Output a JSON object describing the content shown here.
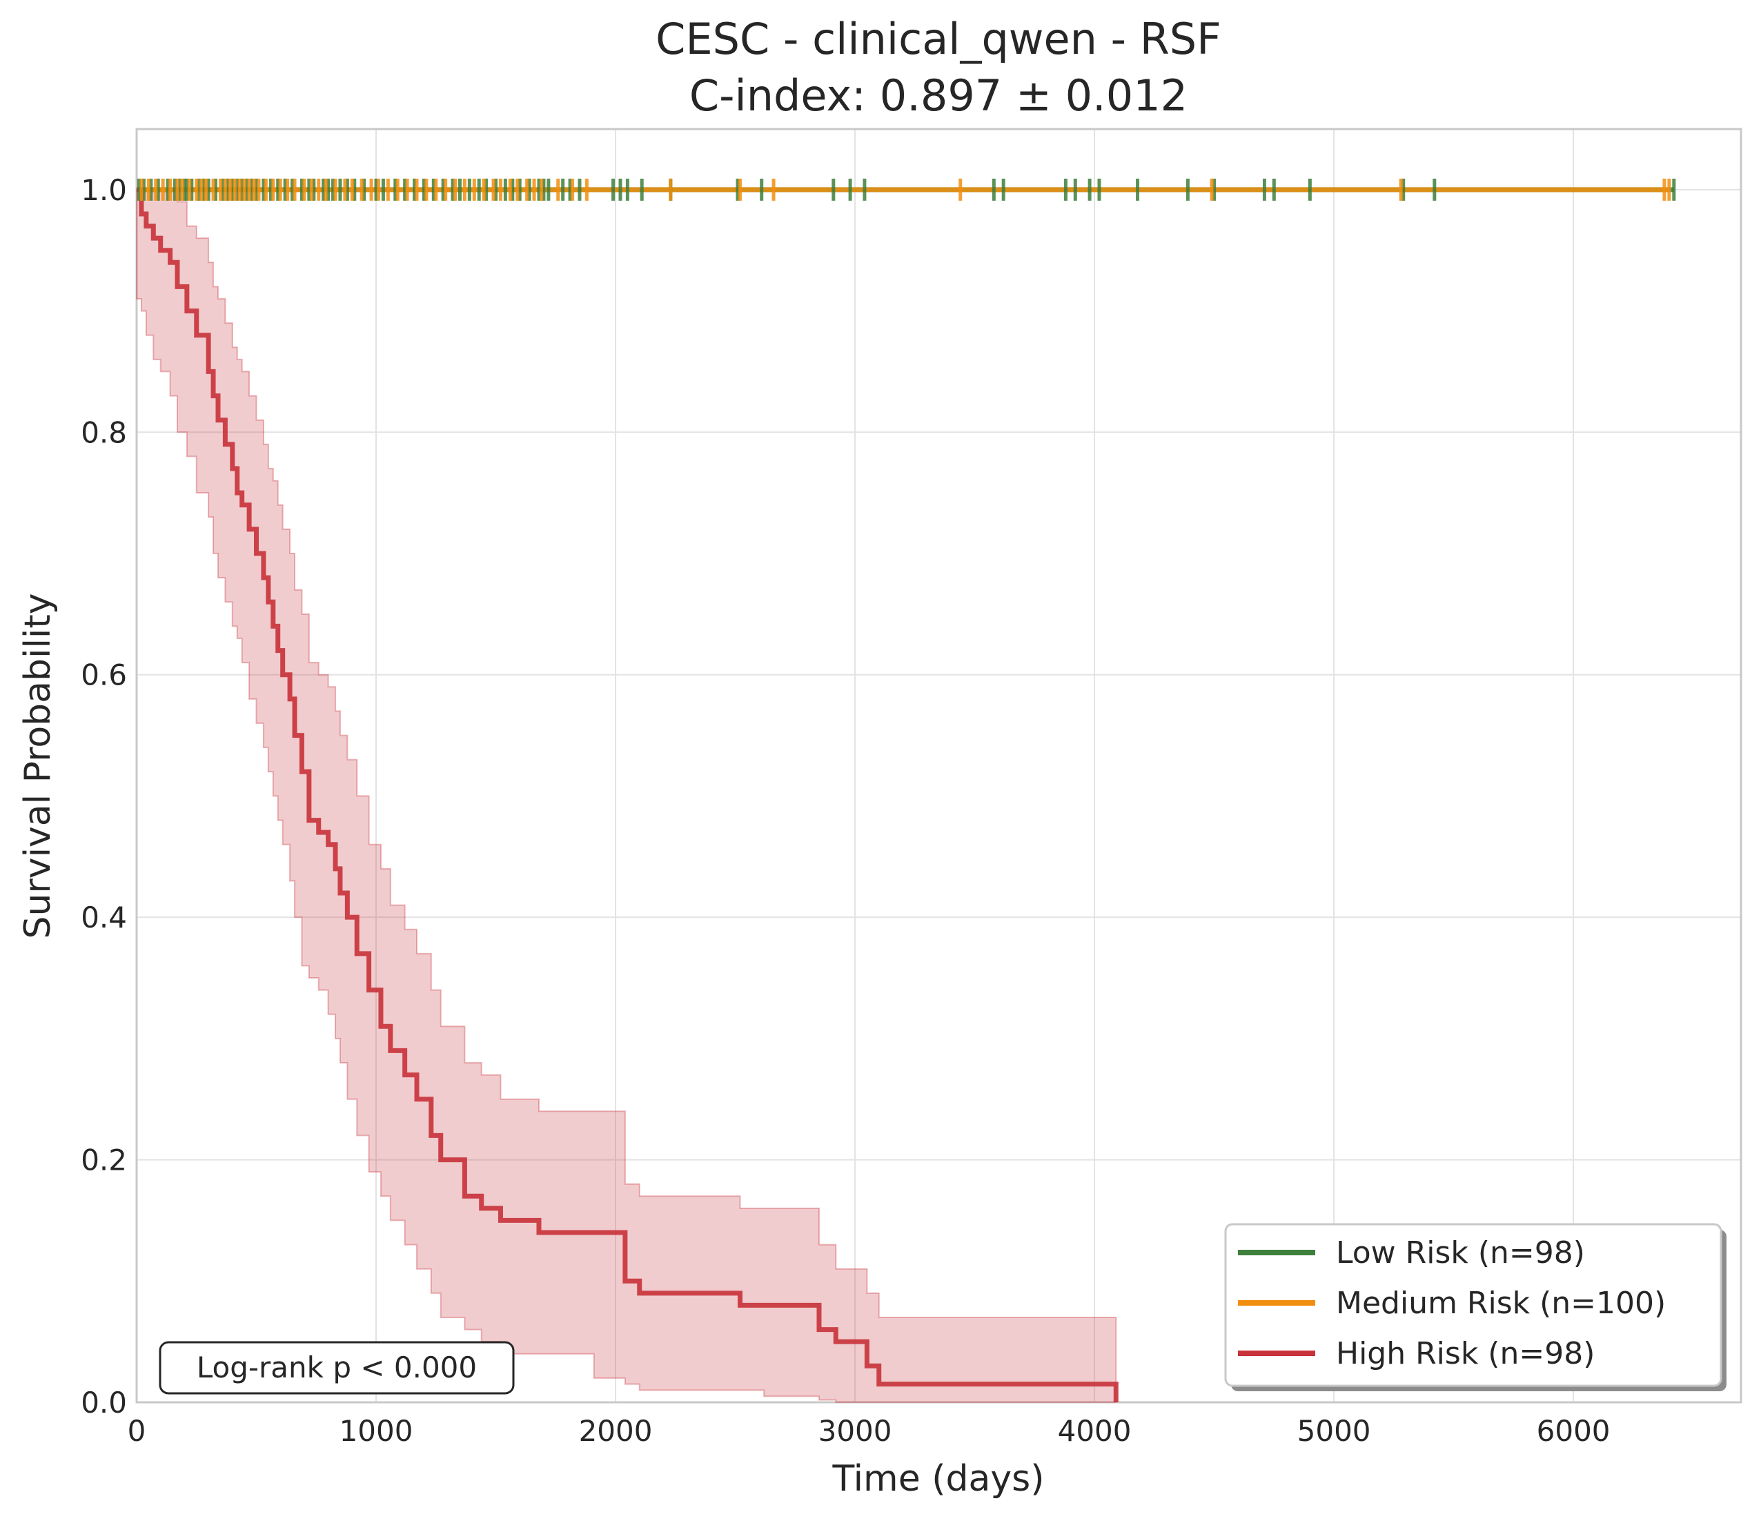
{
  "chart_data": {
    "type": "line",
    "title_line1": "CESC - clinical_qwen - RSF",
    "title_line2": "C-index: 0.897 ± 0.012",
    "xlabel": "Time (days)",
    "ylabel": "Survival Probability",
    "xlim": [
      0,
      6700
    ],
    "ylim": [
      0,
      1.05
    ],
    "x_ticks": [
      0,
      1000,
      2000,
      3000,
      4000,
      5000,
      6000
    ],
    "x_tick_labels": [
      "0",
      "1000",
      "2000",
      "3000",
      "4000",
      "5000",
      "6000"
    ],
    "y_ticks": [
      0,
      0.2,
      0.4,
      0.6,
      0.8,
      1.0
    ],
    "y_tick_labels": [
      "0.0",
      "0.2",
      "0.4",
      "0.6",
      "0.8",
      "1.0"
    ],
    "grid": true,
    "legend_position": "bottom-right",
    "annotation": "Log-rank p < 0.000",
    "colors": {
      "low": "#3e7f3b",
      "medium": "#f28e0e",
      "high": "#c8323a",
      "grid": "#e3e3e3",
      "axes": "#c8c8c8",
      "text": "#262626"
    },
    "series": [
      {
        "name": "Low Risk (n=98)",
        "key": "low",
        "x": [
          0,
          6420
        ],
        "y": [
          1.0,
          1.0
        ],
        "censor_x": [
          10,
          30,
          60,
          90,
          130,
          160,
          180,
          200,
          210,
          230,
          260,
          280,
          300,
          330,
          360,
          380,
          400,
          420,
          440,
          460,
          480,
          500,
          530,
          560,
          590,
          620,
          650,
          690,
          720,
          740,
          780,
          800,
          820,
          850,
          880,
          910,
          950,
          1000,
          1030,
          1080,
          1120,
          1160,
          1200,
          1240,
          1280,
          1320,
          1350,
          1390,
          1430,
          1460,
          1500,
          1540,
          1570,
          1600,
          1640,
          1680,
          1700,
          1720,
          1780,
          1810,
          1850,
          1990,
          2020,
          2050,
          2110,
          2230,
          2510,
          2610,
          2910,
          2980,
          3040,
          3580,
          3620,
          3880,
          3920,
          3980,
          4020,
          4180,
          4390,
          4500,
          4710,
          4750,
          4900,
          5290,
          5420,
          6420
        ]
      },
      {
        "name": "Medium Risk (n=100)",
        "key": "medium",
        "x": [
          0,
          6400
        ],
        "y": [
          1.0,
          1.0
        ],
        "censor_x": [
          20,
          50,
          80,
          110,
          140,
          170,
          190,
          220,
          250,
          270,
          290,
          320,
          350,
          370,
          390,
          410,
          430,
          450,
          470,
          490,
          510,
          540,
          570,
          600,
          630,
          660,
          700,
          730,
          760,
          790,
          830,
          870,
          900,
          940,
          980,
          1010,
          1050,
          1090,
          1130,
          1170,
          1210,
          1250,
          1290,
          1330,
          1370,
          1410,
          1450,
          1490,
          1520,
          1560,
          1590,
          1630,
          1660,
          1690,
          1760,
          1820,
          1880,
          2230,
          2520,
          2660,
          3440,
          4490,
          5280,
          6380,
          6400
        ]
      },
      {
        "name": "High Risk (n=98)",
        "key": "high",
        "x": [
          0,
          20,
          40,
          70,
          100,
          140,
          170,
          210,
          250,
          300,
          320,
          340,
          370,
          400,
          420,
          440,
          470,
          500,
          530,
          550,
          570,
          590,
          610,
          640,
          660,
          690,
          720,
          760,
          800,
          830,
          850,
          880,
          920,
          970,
          1020,
          1060,
          1120,
          1170,
          1230,
          1270,
          1370,
          1440,
          1520,
          1680,
          1910,
          2040,
          2100,
          2520,
          2620,
          2850,
          2920,
          3050,
          3100,
          3400,
          4080,
          4090
        ],
        "y": [
          1.0,
          0.98,
          0.97,
          0.96,
          0.95,
          0.94,
          0.92,
          0.9,
          0.88,
          0.85,
          0.83,
          0.81,
          0.79,
          0.77,
          0.75,
          0.74,
          0.72,
          0.7,
          0.68,
          0.66,
          0.64,
          0.62,
          0.6,
          0.58,
          0.55,
          0.52,
          0.48,
          0.47,
          0.46,
          0.44,
          0.42,
          0.4,
          0.37,
          0.34,
          0.31,
          0.29,
          0.27,
          0.25,
          0.22,
          0.2,
          0.17,
          0.16,
          0.15,
          0.14,
          0.14,
          0.1,
          0.09,
          0.08,
          0.08,
          0.06,
          0.05,
          0.03,
          0.015,
          0.015,
          0.015,
          0.0
        ],
        "ci_lower": [
          0.93,
          0.91,
          0.9,
          0.88,
          0.86,
          0.85,
          0.83,
          0.8,
          0.78,
          0.75,
          0.73,
          0.7,
          0.68,
          0.66,
          0.64,
          0.63,
          0.61,
          0.58,
          0.56,
          0.54,
          0.52,
          0.5,
          0.48,
          0.46,
          0.43,
          0.4,
          0.36,
          0.35,
          0.34,
          0.32,
          0.3,
          0.28,
          0.25,
          0.22,
          0.19,
          0.17,
          0.15,
          0.13,
          0.11,
          0.09,
          0.07,
          0.06,
          0.05,
          0.04,
          0.04,
          0.02,
          0.015,
          0.01,
          0.01,
          0.005,
          0.002,
          0.0,
          0.0,
          0.0,
          0.0,
          0.0
        ],
        "ci_upper": [
          1.0,
          1.0,
          1.0,
          1.0,
          1.0,
          1.0,
          0.99,
          0.97,
          0.96,
          0.94,
          0.92,
          0.91,
          0.89,
          0.87,
          0.86,
          0.85,
          0.83,
          0.81,
          0.79,
          0.77,
          0.76,
          0.74,
          0.72,
          0.7,
          0.67,
          0.65,
          0.61,
          0.6,
          0.59,
          0.57,
          0.55,
          0.53,
          0.5,
          0.46,
          0.44,
          0.41,
          0.39,
          0.37,
          0.34,
          0.31,
          0.28,
          0.27,
          0.25,
          0.24,
          0.24,
          0.18,
          0.17,
          0.16,
          0.16,
          0.13,
          0.11,
          0.09,
          0.07,
          0.07,
          0.07,
          0.07
        ]
      }
    ]
  }
}
